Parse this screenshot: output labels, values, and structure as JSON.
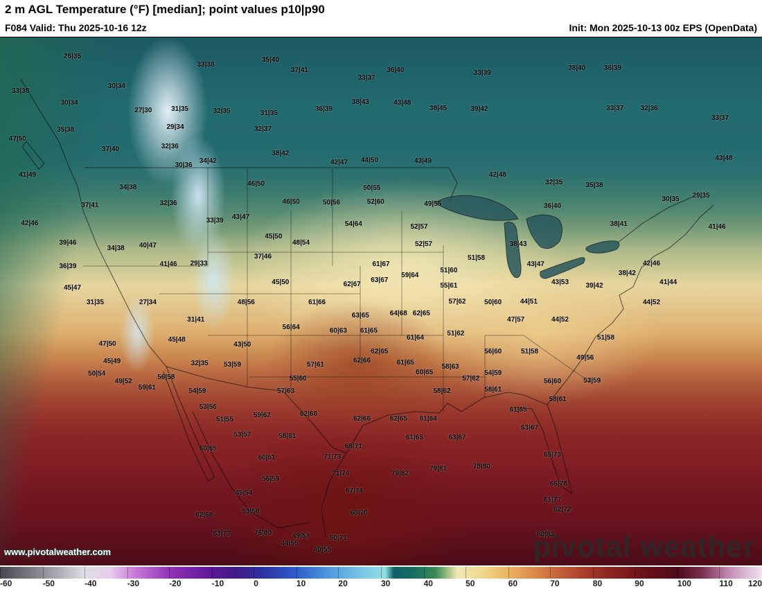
{
  "header": {
    "title": "2 m AGL Temperature (°F) [median]; point values p10|p90",
    "valid_label": "F084 Valid: Thu 2025-10-16 12z",
    "init_label": "Init: Mon 2025-10-13 00z EPS (OpenData)"
  },
  "watermark": {
    "url": "www.pivotalweather.com",
    "logo_text": "pivotal weather"
  },
  "chart_data": {
    "type": "heatmap",
    "title": "2 m AGL Temperature (°F) [median]; point values p10|p90",
    "units": "°F",
    "region": "North America / CONUS",
    "forecast_hour": "F084",
    "valid_time": "Thu 2025-10-16 12z",
    "init_time": "Mon 2025-10-13 00z",
    "model": "EPS (OpenData)",
    "point_value_format": "p10|p90",
    "palette_hint": {
      "cold": "#216a6e",
      "freezing": "#8fe0e2",
      "mild": "#f0e8b6",
      "warm": "#dd8b4b",
      "hot": "#6a1217"
    },
    "colorbar": {
      "min": -60,
      "max": 120,
      "interval": 10,
      "legend_position": "bottom",
      "ticks": [
        {
          "label": "-60",
          "x": 0
        },
        {
          "label": "-50",
          "x": 5.6
        },
        {
          "label": "-40",
          "x": 11.1
        },
        {
          "label": "-30",
          "x": 16.7
        },
        {
          "label": "-20",
          "x": 22.2
        },
        {
          "label": "-10",
          "x": 27.8
        },
        {
          "label": "0",
          "x": 33.3
        },
        {
          "label": "10",
          "x": 38.9
        },
        {
          "label": "20",
          "x": 44.4
        },
        {
          "label": "30",
          "x": 50.0
        },
        {
          "label": "40",
          "x": 55.6
        },
        {
          "label": "50",
          "x": 61.1
        },
        {
          "label": "60",
          "x": 66.7
        },
        {
          "label": "70",
          "x": 72.2
        },
        {
          "label": "80",
          "x": 77.8
        },
        {
          "label": "90",
          "x": 83.3
        },
        {
          "label": "100",
          "x": 88.9
        },
        {
          "label": "110",
          "x": 94.4
        },
        {
          "label": "120",
          "x": 100.0
        }
      ],
      "stops": [
        {
          "value": -60,
          "color": "#46464e"
        },
        {
          "value": -50,
          "color": "#8e8e96"
        },
        {
          "value": -40,
          "color": "#dedee4"
        },
        {
          "value": -34,
          "color": "#e6cdea"
        },
        {
          "value": -28,
          "color": "#c878d8"
        },
        {
          "value": -20,
          "color": "#9233b8"
        },
        {
          "value": -10,
          "color": "#5d1795"
        },
        {
          "value": -4,
          "color": "#401b88"
        },
        {
          "value": 2,
          "color": "#2c31a0"
        },
        {
          "value": 10,
          "color": "#2f5dc9"
        },
        {
          "value": 18,
          "color": "#4f9bde"
        },
        {
          "value": 26,
          "color": "#7ec9e8"
        },
        {
          "value": 31,
          "color": "#8fe0e2"
        },
        {
          "value": 33,
          "color": "#0f5f68"
        },
        {
          "value": 38,
          "color": "#186e62"
        },
        {
          "value": 43,
          "color": "#3c8a56"
        },
        {
          "value": 46,
          "color": "#a7c387"
        },
        {
          "value": 48,
          "color": "#f0e8b6"
        },
        {
          "value": 54,
          "color": "#f0d88c"
        },
        {
          "value": 60,
          "color": "#eab45f"
        },
        {
          "value": 66,
          "color": "#dd8b4b"
        },
        {
          "value": 72,
          "color": "#c4613a"
        },
        {
          "value": 78,
          "color": "#a93d2c"
        },
        {
          "value": 84,
          "color": "#8c2520"
        },
        {
          "value": 92,
          "color": "#6a1217"
        },
        {
          "value": 100,
          "color": "#4e0a18"
        },
        {
          "value": 106,
          "color": "#7a3050"
        },
        {
          "value": 112,
          "color": "#c289b1"
        },
        {
          "value": 120,
          "color": "#f2e3f2"
        }
      ]
    },
    "points": [
      {
        "x": 9.5,
        "y": 3.7,
        "t": "26|35"
      },
      {
        "x": 27.0,
        "y": 5.2,
        "t": "33|38"
      },
      {
        "x": 35.5,
        "y": 4.3,
        "t": "35|40"
      },
      {
        "x": 39.3,
        "y": 6.3,
        "t": "37|41"
      },
      {
        "x": 48.1,
        "y": 7.8,
        "t": "33|37"
      },
      {
        "x": 51.9,
        "y": 6.3,
        "t": "36|40"
      },
      {
        "x": 63.3,
        "y": 6.8,
        "t": "33|39"
      },
      {
        "x": 75.7,
        "y": 5.9,
        "t": "38|40"
      },
      {
        "x": 80.4,
        "y": 5.9,
        "t": "36|39"
      },
      {
        "x": 2.7,
        "y": 10.2,
        "t": "33|38"
      },
      {
        "x": 15.3,
        "y": 9.3,
        "t": "30|34"
      },
      {
        "x": 9.1,
        "y": 12.5,
        "t": "30|34"
      },
      {
        "x": 18.8,
        "y": 13.9,
        "t": "27|30"
      },
      {
        "x": 23.6,
        "y": 13.6,
        "t": "31|35"
      },
      {
        "x": 29.1,
        "y": 14.1,
        "t": "32|35"
      },
      {
        "x": 35.3,
        "y": 14.4,
        "t": "31|35"
      },
      {
        "x": 42.5,
        "y": 13.6,
        "t": "36|39"
      },
      {
        "x": 47.3,
        "y": 12.4,
        "t": "38|43"
      },
      {
        "x": 52.8,
        "y": 12.5,
        "t": "43|48"
      },
      {
        "x": 57.5,
        "y": 13.5,
        "t": "38|45"
      },
      {
        "x": 62.9,
        "y": 13.7,
        "t": "39|42"
      },
      {
        "x": 80.7,
        "y": 13.5,
        "t": "33|37"
      },
      {
        "x": 85.2,
        "y": 13.5,
        "t": "32|36"
      },
      {
        "x": 94.5,
        "y": 15.4,
        "t": "33|37"
      },
      {
        "x": 8.6,
        "y": 17.6,
        "t": "35|38"
      },
      {
        "x": 23.0,
        "y": 17.1,
        "t": "29|34"
      },
      {
        "x": 34.5,
        "y": 17.4,
        "t": "32|37"
      },
      {
        "x": 2.3,
        "y": 19.3,
        "t": "47|50"
      },
      {
        "x": 14.5,
        "y": 21.3,
        "t": "37|40"
      },
      {
        "x": 22.3,
        "y": 20.8,
        "t": "32|36"
      },
      {
        "x": 36.8,
        "y": 22.0,
        "t": "38|42"
      },
      {
        "x": 44.5,
        "y": 23.7,
        "t": "42|47"
      },
      {
        "x": 48.5,
        "y": 23.3,
        "t": "44|50"
      },
      {
        "x": 55.5,
        "y": 23.5,
        "t": "43|49"
      },
      {
        "x": 27.3,
        "y": 23.5,
        "t": "34|42"
      },
      {
        "x": 24.1,
        "y": 24.3,
        "t": "30|36"
      },
      {
        "x": 3.6,
        "y": 26.1,
        "t": "41|49"
      },
      {
        "x": 65.3,
        "y": 26.1,
        "t": "42|48"
      },
      {
        "x": 72.7,
        "y": 27.5,
        "t": "32|35"
      },
      {
        "x": 78.0,
        "y": 28.1,
        "t": "35|38"
      },
      {
        "x": 95.0,
        "y": 23.0,
        "t": "43|48"
      },
      {
        "x": 16.8,
        "y": 28.5,
        "t": "34|38"
      },
      {
        "x": 11.8,
        "y": 31.9,
        "t": "37|41"
      },
      {
        "x": 22.1,
        "y": 31.5,
        "t": "32|36"
      },
      {
        "x": 33.6,
        "y": 27.8,
        "t": "46|50"
      },
      {
        "x": 38.2,
        "y": 31.2,
        "t": "46|50"
      },
      {
        "x": 43.5,
        "y": 31.4,
        "t": "50|56"
      },
      {
        "x": 48.8,
        "y": 28.6,
        "t": "50|55"
      },
      {
        "x": 49.3,
        "y": 31.2,
        "t": "52|60"
      },
      {
        "x": 56.8,
        "y": 31.6,
        "t": "49|55"
      },
      {
        "x": 72.5,
        "y": 32.0,
        "t": "36|40"
      },
      {
        "x": 88.0,
        "y": 30.7,
        "t": "30|35"
      },
      {
        "x": 92.0,
        "y": 30.1,
        "t": "29|35"
      },
      {
        "x": 3.9,
        "y": 35.3,
        "t": "42|46"
      },
      {
        "x": 28.2,
        "y": 34.8,
        "t": "33|39"
      },
      {
        "x": 31.6,
        "y": 34.1,
        "t": "43|47"
      },
      {
        "x": 35.9,
        "y": 37.8,
        "t": "45|50"
      },
      {
        "x": 39.5,
        "y": 39.0,
        "t": "48|54"
      },
      {
        "x": 46.4,
        "y": 35.4,
        "t": "54|64"
      },
      {
        "x": 55.0,
        "y": 35.9,
        "t": "52|57"
      },
      {
        "x": 55.6,
        "y": 39.2,
        "t": "52|57"
      },
      {
        "x": 8.9,
        "y": 39.0,
        "t": "39|46"
      },
      {
        "x": 15.2,
        "y": 40.0,
        "t": "34|38"
      },
      {
        "x": 19.4,
        "y": 39.5,
        "t": "40|47"
      },
      {
        "x": 68.0,
        "y": 39.2,
        "t": "38|43"
      },
      {
        "x": 62.5,
        "y": 41.8,
        "t": "51|58"
      },
      {
        "x": 81.2,
        "y": 35.4,
        "t": "38|41"
      },
      {
        "x": 94.1,
        "y": 35.9,
        "t": "41|46"
      },
      {
        "x": 8.9,
        "y": 43.4,
        "t": "36|39"
      },
      {
        "x": 22.1,
        "y": 43.0,
        "t": "41|46"
      },
      {
        "x": 26.1,
        "y": 42.9,
        "t": "29|33"
      },
      {
        "x": 34.5,
        "y": 41.6,
        "t": "37|46"
      },
      {
        "x": 36.8,
        "y": 46.4,
        "t": "45|50"
      },
      {
        "x": 50.0,
        "y": 43.0,
        "t": "61|67"
      },
      {
        "x": 53.8,
        "y": 45.1,
        "t": "59|64"
      },
      {
        "x": 58.9,
        "y": 44.2,
        "t": "51|60"
      },
      {
        "x": 70.3,
        "y": 43.1,
        "t": "43|47"
      },
      {
        "x": 73.5,
        "y": 46.5,
        "t": "43|53"
      },
      {
        "x": 78.0,
        "y": 47.1,
        "t": "39|42"
      },
      {
        "x": 82.3,
        "y": 44.8,
        "t": "38|42"
      },
      {
        "x": 85.5,
        "y": 42.9,
        "t": "42|46"
      },
      {
        "x": 87.7,
        "y": 46.4,
        "t": "41|44"
      },
      {
        "x": 9.5,
        "y": 47.5,
        "t": "45|47"
      },
      {
        "x": 12.5,
        "y": 50.3,
        "t": "31|35"
      },
      {
        "x": 19.4,
        "y": 50.3,
        "t": "27|34"
      },
      {
        "x": 32.3,
        "y": 50.3,
        "t": "48|56"
      },
      {
        "x": 41.6,
        "y": 50.3,
        "t": "61|66"
      },
      {
        "x": 46.2,
        "y": 46.8,
        "t": "62|67"
      },
      {
        "x": 49.8,
        "y": 46.1,
        "t": "63|67"
      },
      {
        "x": 58.9,
        "y": 47.1,
        "t": "55|61"
      },
      {
        "x": 47.3,
        "y": 52.7,
        "t": "63|65"
      },
      {
        "x": 52.3,
        "y": 52.3,
        "t": "64|68"
      },
      {
        "x": 55.3,
        "y": 52.3,
        "t": "62|65"
      },
      {
        "x": 60.0,
        "y": 50.1,
        "t": "57|62"
      },
      {
        "x": 64.7,
        "y": 50.3,
        "t": "50|60"
      },
      {
        "x": 69.4,
        "y": 50.1,
        "t": "44|51"
      },
      {
        "x": 67.7,
        "y": 53.6,
        "t": "47|57"
      },
      {
        "x": 73.5,
        "y": 53.6,
        "t": "44|52"
      },
      {
        "x": 85.5,
        "y": 50.3,
        "t": "44|52"
      },
      {
        "x": 44.4,
        "y": 55.7,
        "t": "60|63"
      },
      {
        "x": 48.4,
        "y": 55.7,
        "t": "61|65"
      },
      {
        "x": 38.2,
        "y": 55.0,
        "t": "56|64"
      },
      {
        "x": 54.5,
        "y": 57.0,
        "t": "61|64"
      },
      {
        "x": 59.8,
        "y": 56.2,
        "t": "51|62"
      },
      {
        "x": 25.7,
        "y": 53.6,
        "t": "31|41"
      },
      {
        "x": 49.8,
        "y": 59.6,
        "t": "62|65"
      },
      {
        "x": 41.4,
        "y": 62.1,
        "t": "57|61"
      },
      {
        "x": 39.1,
        "y": 64.7,
        "t": "55|60"
      },
      {
        "x": 47.5,
        "y": 61.3,
        "t": "62|66"
      },
      {
        "x": 53.2,
        "y": 61.7,
        "t": "61|65"
      },
      {
        "x": 55.7,
        "y": 63.5,
        "t": "60|65"
      },
      {
        "x": 59.1,
        "y": 62.5,
        "t": "58|63"
      },
      {
        "x": 64.7,
        "y": 59.6,
        "t": "56|60"
      },
      {
        "x": 69.5,
        "y": 59.6,
        "t": "51|58"
      },
      {
        "x": 76.8,
        "y": 60.8,
        "t": "49|56"
      },
      {
        "x": 79.5,
        "y": 56.9,
        "t": "51|58"
      },
      {
        "x": 77.7,
        "y": 65.1,
        "t": "53|59"
      },
      {
        "x": 61.8,
        "y": 64.7,
        "t": "57|62"
      },
      {
        "x": 64.7,
        "y": 63.7,
        "t": "54|59"
      },
      {
        "x": 72.5,
        "y": 65.2,
        "t": "56|60"
      },
      {
        "x": 58.0,
        "y": 67.1,
        "t": "58|62"
      },
      {
        "x": 64.7,
        "y": 66.8,
        "t": "58|61"
      },
      {
        "x": 73.2,
        "y": 68.6,
        "t": "58|61"
      },
      {
        "x": 68.0,
        "y": 70.6,
        "t": "61|65"
      },
      {
        "x": 26.2,
        "y": 61.8,
        "t": "32|35"
      },
      {
        "x": 21.8,
        "y": 64.4,
        "t": "56|58"
      },
      {
        "x": 19.3,
        "y": 66.4,
        "t": "59|61"
      },
      {
        "x": 16.2,
        "y": 65.2,
        "t": "49|52"
      },
      {
        "x": 12.7,
        "y": 63.8,
        "t": "50|54"
      },
      {
        "x": 14.7,
        "y": 61.4,
        "t": "45|49"
      },
      {
        "x": 14.1,
        "y": 58.2,
        "t": "47|50"
      },
      {
        "x": 23.2,
        "y": 57.3,
        "t": "45|48"
      },
      {
        "x": 31.8,
        "y": 58.3,
        "t": "43|50"
      },
      {
        "x": 30.5,
        "y": 62.1,
        "t": "53|59"
      },
      {
        "x": 25.9,
        "y": 67.1,
        "t": "54|59"
      },
      {
        "x": 27.3,
        "y": 70.1,
        "t": "53|56"
      },
      {
        "x": 29.5,
        "y": 72.5,
        "t": "51|55"
      },
      {
        "x": 34.4,
        "y": 71.6,
        "t": "59|62"
      },
      {
        "x": 31.8,
        "y": 75.3,
        "t": "53|57"
      },
      {
        "x": 37.7,
        "y": 75.6,
        "t": "58|61"
      },
      {
        "x": 37.5,
        "y": 67.1,
        "t": "57|63"
      },
      {
        "x": 35.0,
        "y": 79.7,
        "t": "60|61"
      },
      {
        "x": 35.5,
        "y": 83.7,
        "t": "56|59"
      },
      {
        "x": 40.5,
        "y": 71.4,
        "t": "62|66"
      },
      {
        "x": 47.5,
        "y": 72.3,
        "t": "62|66"
      },
      {
        "x": 52.3,
        "y": 72.3,
        "t": "62|65"
      },
      {
        "x": 56.2,
        "y": 72.3,
        "t": "61|64"
      },
      {
        "x": 54.4,
        "y": 75.8,
        "t": "61|65"
      },
      {
        "x": 60.0,
        "y": 75.8,
        "t": "63|67"
      },
      {
        "x": 46.4,
        "y": 77.5,
        "t": "68|71"
      },
      {
        "x": 43.6,
        "y": 79.5,
        "t": "71|73"
      },
      {
        "x": 44.7,
        "y": 82.7,
        "t": "71|74"
      },
      {
        "x": 46.5,
        "y": 86.0,
        "t": "67|74"
      },
      {
        "x": 47.1,
        "y": 90.2,
        "t": "66|70"
      },
      {
        "x": 52.5,
        "y": 82.7,
        "t": "79|82"
      },
      {
        "x": 57.5,
        "y": 81.8,
        "t": "79|81"
      },
      {
        "x": 63.2,
        "y": 81.4,
        "t": "78|80"
      },
      {
        "x": 69.5,
        "y": 74.0,
        "t": "63|67"
      },
      {
        "x": 72.5,
        "y": 79.1,
        "t": "65|73"
      },
      {
        "x": 73.3,
        "y": 84.7,
        "t": "66|78"
      },
      {
        "x": 72.5,
        "y": 87.6,
        "t": "61|77"
      },
      {
        "x": 73.8,
        "y": 89.5,
        "t": "62|72"
      },
      {
        "x": 71.6,
        "y": 94.2,
        "t": "80|83"
      },
      {
        "x": 27.3,
        "y": 77.9,
        "t": "60|65"
      },
      {
        "x": 26.8,
        "y": 90.6,
        "t": "62|68"
      },
      {
        "x": 29.1,
        "y": 94.1,
        "t": "63|73"
      },
      {
        "x": 34.5,
        "y": 93.9,
        "t": "76|80"
      },
      {
        "x": 32.0,
        "y": 86.3,
        "t": "45|54"
      },
      {
        "x": 32.9,
        "y": 89.9,
        "t": "53|58"
      },
      {
        "x": 38.0,
        "y": 95.9,
        "t": "44|55"
      },
      {
        "x": 39.5,
        "y": 94.5,
        "t": "49|53"
      },
      {
        "x": 42.3,
        "y": 97.1,
        "t": "49|55"
      },
      {
        "x": 44.4,
        "y": 94.9,
        "t": "50|71"
      }
    ]
  }
}
